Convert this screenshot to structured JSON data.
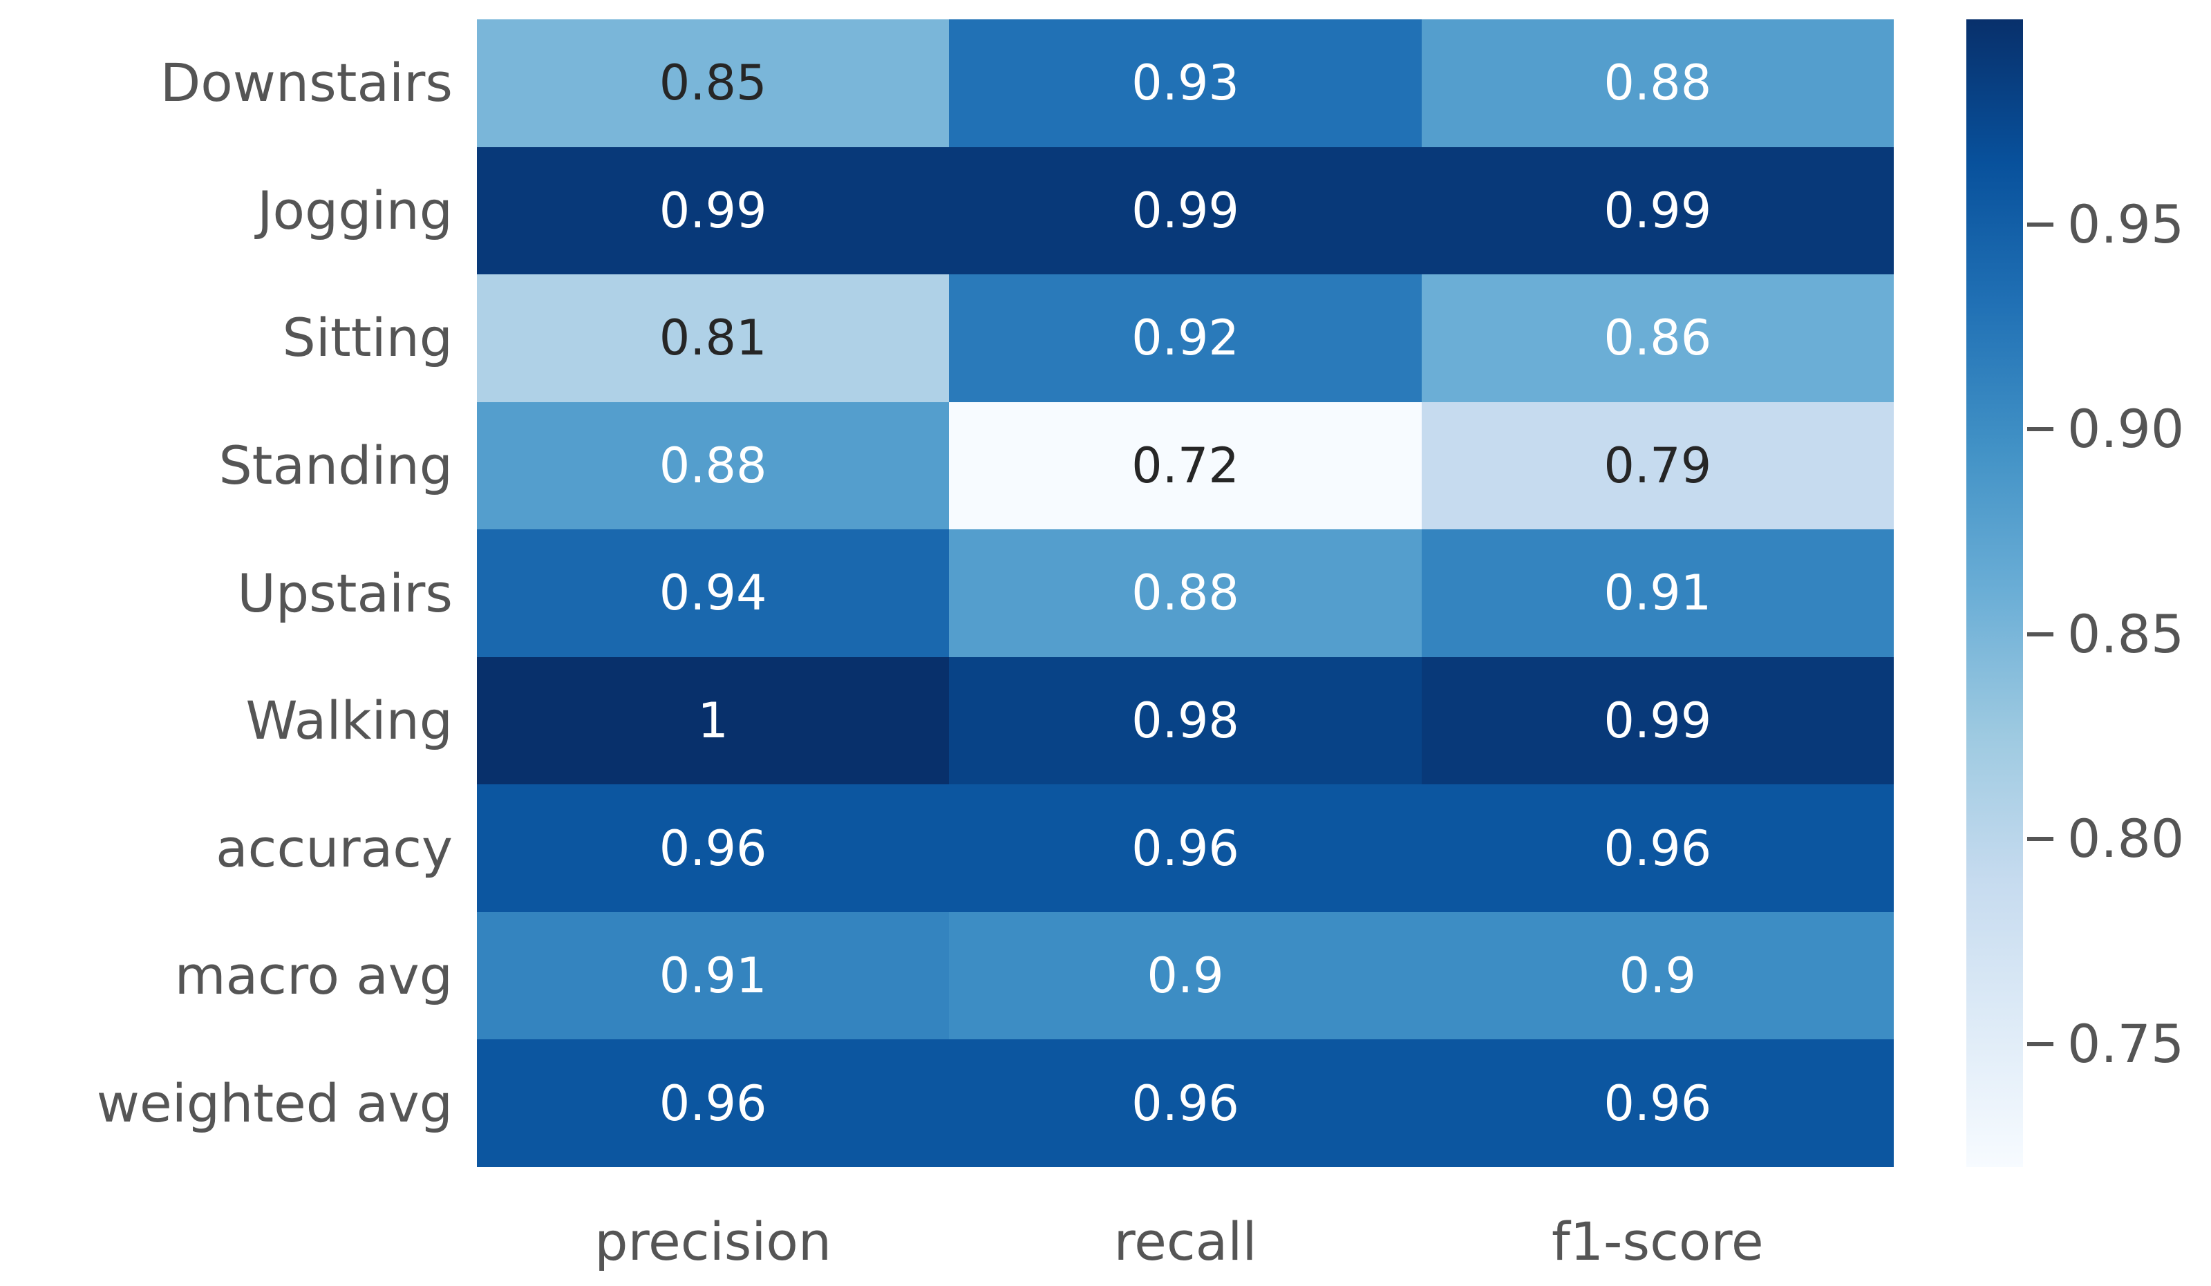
{
  "figure": {
    "background": "#ffffff",
    "tick_label_color": "#555555"
  },
  "chart_data": {
    "type": "heatmap",
    "title": "",
    "xlabel": "",
    "ylabel": "",
    "rows": [
      "Downstairs",
      "Jogging",
      "Sitting",
      "Standing",
      "Upstairs",
      "Walking",
      "accuracy",
      "macro avg",
      "weighted avg"
    ],
    "columns": [
      "precision",
      "recall",
      "f1-score"
    ],
    "matrix": [
      [
        0.85,
        0.93,
        0.88
      ],
      [
        0.99,
        0.99,
        0.99
      ],
      [
        0.81,
        0.92,
        0.86
      ],
      [
        0.88,
        0.72,
        0.79
      ],
      [
        0.94,
        0.88,
        0.91
      ],
      [
        1,
        0.98,
        0.99
      ],
      [
        0.96,
        0.96,
        0.96
      ],
      [
        0.91,
        0.9,
        0.9
      ],
      [
        0.96,
        0.96,
        0.96
      ]
    ],
    "cell_labels": [
      [
        "0.85",
        "0.93",
        "0.88"
      ],
      [
        "0.99",
        "0.99",
        "0.99"
      ],
      [
        "0.81",
        "0.92",
        "0.86"
      ],
      [
        "0.88",
        "0.72",
        "0.79"
      ],
      [
        "0.94",
        "0.88",
        "0.91"
      ],
      [
        "1",
        "0.98",
        "0.99"
      ],
      [
        "0.96",
        "0.96",
        "0.96"
      ],
      [
        "0.91",
        "0.9",
        "0.9"
      ],
      [
        "0.96",
        "0.96",
        "0.96"
      ]
    ],
    "colormap": "Blues",
    "vmin": 0.72,
    "vmax": 1.0,
    "grid": false,
    "bg_colors": [
      [
        "#7ab6d9",
        "#2171b5",
        "#549ecd"
      ],
      [
        "#083979",
        "#083979",
        "#083979"
      ],
      [
        "#afd1e7",
        "#2a7aba",
        "#6baed6"
      ],
      [
        "#549ecd",
        "#f7fbff",
        "#c6dbef"
      ],
      [
        "#1a68ae",
        "#549ecd",
        "#3484bf"
      ],
      [
        "#08306b",
        "#084387",
        "#083979"
      ],
      [
        "#0c56a0",
        "#0c56a0",
        "#0c56a0"
      ],
      [
        "#3484bf",
        "#3d8dc4",
        "#3d8dc4"
      ],
      [
        "#0c56a0",
        "#0c56a0",
        "#0c56a0"
      ]
    ],
    "fg_colors": [
      [
        "#262626",
        "#ffffff",
        "#ffffff"
      ],
      [
        "#ffffff",
        "#ffffff",
        "#ffffff"
      ],
      [
        "#262626",
        "#ffffff",
        "#ffffff"
      ],
      [
        "#ffffff",
        "#262626",
        "#262626"
      ],
      [
        "#ffffff",
        "#ffffff",
        "#ffffff"
      ],
      [
        "#ffffff",
        "#ffffff",
        "#ffffff"
      ],
      [
        "#ffffff",
        "#ffffff",
        "#ffffff"
      ],
      [
        "#ffffff",
        "#ffffff",
        "#ffffff"
      ],
      [
        "#ffffff",
        "#ffffff",
        "#ffffff"
      ]
    ],
    "colorbar": {
      "position": "right",
      "ticks": [
        0.95,
        0.9,
        0.85,
        0.8,
        0.75
      ],
      "tick_labels": [
        "0.95",
        "0.90",
        "0.85",
        "0.80",
        "0.75"
      ],
      "tick_color": "#555555"
    }
  }
}
